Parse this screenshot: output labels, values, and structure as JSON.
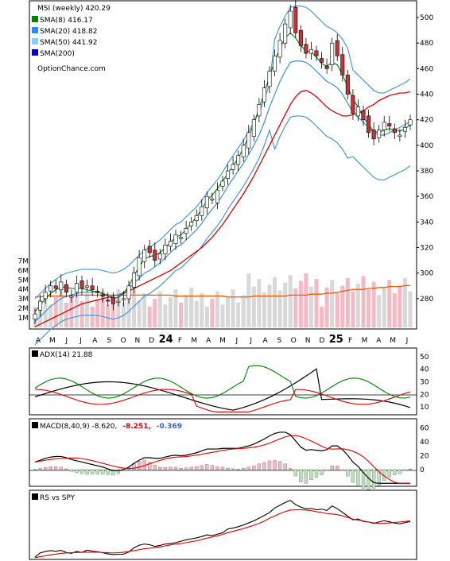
{
  "colors": {
    "sma8": "#008000",
    "sma20": "#1e90ff",
    "sma50": "#87cefa",
    "sma200": "#0000cd",
    "ma50_line": "#dd0000",
    "bollinger": "#3a8fd8",
    "envelope": "#e6d800",
    "volume_up": "#d8d8d8",
    "volume_down": "#f4b9c3",
    "volume_avg": "#e85c00",
    "candle_up": "#ffffff",
    "candle_down": "#c8303a",
    "candle_special": "#e8e86a",
    "candle_special2": "#c9a6d8",
    "adx": "#000000",
    "plus_di": "#008000",
    "minus_di": "#dd0000",
    "macd_neg": "#dd0000",
    "macd_hist_value": "#3366cc",
    "hist_up": "#f4b9c3",
    "hist_dn": "#b9e0b9"
  },
  "main": {
    "title": "MSI (weekly) 420.29",
    "legend": [
      {
        "label": "SMA(8) 416.17",
        "color": "#008000"
      },
      {
        "label": "SMA(20) 418.82",
        "color": "#1e90ff"
      },
      {
        "label": "SMA(50) 441.92",
        "color": "#87cefa"
      },
      {
        "label": "SMA(200)",
        "color": "#0000cd"
      }
    ],
    "source": "OptionChance.com",
    "price_ticks": [
      "500",
      "480",
      "460",
      "440",
      "420",
      "400",
      "380",
      "360",
      "340",
      "320",
      "300",
      "280"
    ],
    "volume_ticks": [
      "7M",
      "6M",
      "5M",
      "4M",
      "3M",
      "2M",
      "1M"
    ],
    "x_labels": [
      "A",
      "M",
      "J",
      "J",
      "A",
      "S",
      "O",
      "N",
      "D",
      "24",
      "F",
      "M",
      "A",
      "M",
      "J",
      "J",
      "A",
      "S",
      "O",
      "N",
      "D",
      "25",
      "F",
      "M",
      "A",
      "M",
      "J"
    ]
  },
  "adx": {
    "label": "ADX(14) 21.88",
    "ticks": [
      "50",
      "40",
      "30",
      "20",
      "10"
    ]
  },
  "macd": {
    "label": "MACD(8,40,9) -8.620,",
    "value2": "-8.251,",
    "value3": "-0.369",
    "ticks": [
      "60",
      "40",
      "20",
      "0"
    ]
  },
  "rs": {
    "label": "RS vs SPY"
  },
  "chart_data": [
    {
      "type": "candlestick",
      "title": "MSI (weekly) 420.29",
      "ylim": [
        265,
        510
      ],
      "series": [
        {
          "name": "MSI",
          "values": [
            268,
            278,
            285,
            290,
            288,
            293,
            285,
            282,
            292,
            288,
            290,
            287,
            285,
            282,
            278,
            276,
            278,
            280,
            290,
            300,
            312,
            318,
            316,
            310,
            315,
            322,
            325,
            330,
            328,
            335,
            340,
            345,
            352,
            360,
            358,
            365,
            372,
            380,
            385,
            392,
            400,
            410,
            420,
            432,
            445,
            458,
            470,
            482,
            495,
            505,
            488,
            478,
            472,
            475,
            470,
            465,
            460,
            480,
            470,
            455,
            440,
            425,
            430,
            420,
            410,
            405,
            412,
            418,
            415,
            410,
            408,
            414,
            420
          ]
        },
        {
          "name": "SMA(8) 416.17",
          "values": [
            270,
            275,
            280,
            284,
            287,
            289,
            289,
            288,
            288,
            288,
            287,
            286,
            285,
            284,
            282,
            280,
            281,
            284,
            290,
            298,
            305,
            311,
            313,
            314,
            316,
            320,
            324,
            328,
            330,
            334,
            339,
            344,
            350,
            357,
            361,
            366,
            372,
            378,
            384,
            390,
            398,
            407,
            417,
            429,
            441,
            454,
            466,
            476,
            484,
            488,
            484,
            478,
            474,
            473,
            469,
            464,
            462,
            465,
            463,
            455,
            446,
            436,
            430,
            422,
            416,
            411,
            410,
            412,
            413,
            412,
            411,
            413,
            416
          ]
        },
        {
          "name": "SMA(20) 418.82",
          "values": [
            262,
            266,
            270,
            274,
            277,
            280,
            282,
            283,
            284,
            285,
            285,
            285,
            285,
            284,
            283,
            282,
            283,
            285,
            288,
            292,
            296,
            300,
            302,
            305,
            308,
            312,
            316,
            320,
            322,
            326,
            330,
            334,
            339,
            345,
            350,
            355,
            361,
            368,
            374,
            380,
            386,
            393,
            400,
            408,
            418,
            430,
            440,
            450,
            458,
            465,
            466,
            466,
            465,
            462,
            458,
            454,
            450,
            448,
            445,
            440,
            433,
            426,
            422,
            418,
            414,
            410,
            408,
            408,
            410,
            412,
            414,
            416,
            419
          ]
        },
        {
          "name": "SMA(50)",
          "values": [
            258,
            260,
            262,
            264,
            266,
            268,
            270,
            272,
            274,
            276,
            277,
            278,
            279,
            280,
            281,
            282,
            283,
            284,
            286,
            288,
            290,
            292,
            294,
            296,
            298,
            300,
            302,
            305,
            308,
            311,
            314,
            317,
            320,
            324,
            328,
            333,
            338,
            344,
            350,
            356,
            362,
            369,
            376,
            384,
            392,
            400,
            408,
            416,
            424,
            432,
            438,
            442,
            443,
            441,
            438,
            434,
            430,
            427,
            425,
            423,
            423,
            424,
            425,
            427,
            430,
            432,
            435,
            437,
            439,
            440,
            441,
            441,
            442
          ]
        },
        {
          "name": "Volume avg",
          "values": [
            3.2,
            3.2,
            3.3,
            3.3,
            3.3,
            3.3,
            3.3,
            3.3,
            3.4,
            3.4,
            3.4,
            3.4,
            3.4,
            3.4,
            3.4,
            3.4,
            3.4,
            3.4,
            3.4,
            3.4,
            3.4,
            3.4,
            3.4,
            3.4,
            3.4,
            3.4,
            3.4,
            3.3,
            3.3,
            3.3,
            3.3,
            3.3,
            3.3,
            3.3,
            3.3,
            3.3,
            3.3,
            3.2,
            3.2,
            3.2,
            3.2,
            3.2,
            3.3,
            3.3,
            3.3,
            3.3,
            3.3,
            3.3,
            3.3,
            3.4,
            3.4,
            3.4,
            3.4,
            3.5,
            3.5,
            3.5,
            3.6,
            3.6,
            3.7,
            3.8,
            3.9,
            4.0,
            4.0,
            4.0,
            4.1,
            4.1,
            4.2,
            4.2,
            4.3,
            4.3,
            4.3,
            4.4,
            4.4
          ]
        }
      ]
    }
  ]
}
